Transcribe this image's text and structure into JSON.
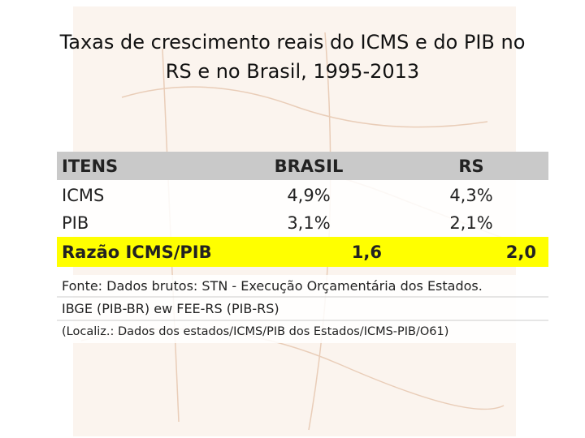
{
  "title": [
    "Taxas de crescimento reais do ICMS e do PIB no",
    "RS e no Brasil, 1995-2013"
  ],
  "table": {
    "header": [
      "ITENS",
      "BRASIL",
      "RS"
    ],
    "rows": [
      [
        "ICMS",
        "4,9%",
        "4,3%"
      ],
      [
        "PIB",
        "3,1%",
        "2,1%"
      ]
    ],
    "highlight": [
      "Razão ICMS/PIB",
      "1,6",
      "2,0"
    ]
  },
  "notes": [
    "Fonte: Dados brutos:  STN - Execução Orçamentária dos Estados.",
    "IBGE (PIB-BR) ew FEE-RS (PIB-RS)",
    "(Localiz.: Dados dos estados/ICMS/PIB dos Estados/ICMS-PIB/O61)"
  ]
}
